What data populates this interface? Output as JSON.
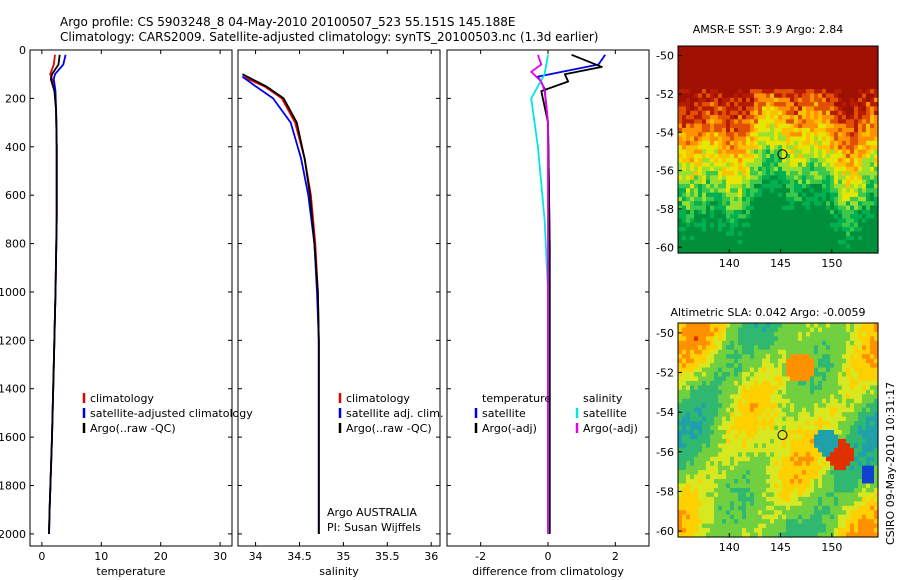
{
  "header": {
    "line1": "Argo profile: CS 5903248_8 04-May-2010 20100507_523 55.151S 145.188E",
    "line2": "Climatology: CARS2009. Satellite-adjusted climatology: synTS_20100503.nc (1.3d earlier)"
  },
  "side_label": "CSIRO 09-May-2010 10:31:17",
  "chart_data": [
    {
      "type": "line",
      "xlabel": "temperature",
      "ylabel": "",
      "xlim": [
        -2,
        32
      ],
      "ylim": [
        2050,
        0
      ],
      "xticks": [
        0,
        10,
        20,
        30
      ],
      "yticks": [
        0,
        200,
        400,
        600,
        800,
        1000,
        1200,
        1400,
        1600,
        1800,
        2000
      ],
      "legend": [
        "climatology",
        "satellite-adjusted climatology",
        "Argo(..raw -QC)"
      ],
      "series": [
        {
          "name": "climatology",
          "color": "#e60000",
          "points": [
            [
              2.2,
              20
            ],
            [
              2.0,
              60
            ],
            [
              1.4,
              100
            ],
            [
              1.7,
              120
            ],
            [
              2.2,
              170
            ],
            [
              2.4,
              250
            ],
            [
              2.5,
              400
            ],
            [
              2.5,
              700
            ],
            [
              2.3,
              1000
            ],
            [
              2.0,
              1300
            ],
            [
              1.7,
              1600
            ],
            [
              1.3,
              1900
            ],
            [
              1.2,
              2000
            ]
          ]
        },
        {
          "name": "satellite-adjusted climatology",
          "color": "#0000ee",
          "points": [
            [
              4.0,
              20
            ],
            [
              3.6,
              60
            ],
            [
              2.2,
              100
            ],
            [
              2.0,
              120
            ],
            [
              2.3,
              170
            ],
            [
              2.4,
              250
            ],
            [
              2.5,
              400
            ],
            [
              2.5,
              700
            ],
            [
              2.3,
              1000
            ],
            [
              2.0,
              1300
            ],
            [
              1.7,
              1600
            ],
            [
              1.3,
              1900
            ],
            [
              1.2,
              2000
            ]
          ]
        },
        {
          "name": "Argo(..raw -QC)",
          "color": "#000000",
          "points": [
            [
              3.0,
              20
            ],
            [
              2.8,
              60
            ],
            [
              1.7,
              100
            ],
            [
              1.5,
              120
            ],
            [
              2.1,
              170
            ],
            [
              2.4,
              250
            ],
            [
              2.5,
              400
            ],
            [
              2.5,
              700
            ],
            [
              2.3,
              1000
            ],
            [
              2.0,
              1300
            ],
            [
              1.7,
              1600
            ],
            [
              1.3,
              1900
            ],
            [
              1.2,
              2000
            ]
          ]
        }
      ]
    },
    {
      "type": "line",
      "xlabel": "salinity",
      "ylabel": "",
      "xlim": [
        33.8,
        36.1
      ],
      "ylim": [
        2050,
        0
      ],
      "xticks": [
        34,
        34.5,
        35,
        35.5,
        36
      ],
      "legend": [
        "climatology",
        "satellite adj. clim.",
        "Argo(..raw -QC)"
      ],
      "annotation": [
        "Argo AUSTRALIA",
        "PI: Susan Wijffels"
      ],
      "series": [
        {
          "name": "climatology",
          "color": "#e60000",
          "points": [
            [
              33.85,
              110
            ],
            [
              34.1,
              150
            ],
            [
              34.3,
              200
            ],
            [
              34.45,
              300
            ],
            [
              34.56,
              450
            ],
            [
              34.63,
              600
            ],
            [
              34.68,
              800
            ],
            [
              34.71,
              1000
            ],
            [
              34.72,
              1200
            ],
            [
              34.72,
              1600
            ],
            [
              34.72,
              2000
            ]
          ]
        },
        {
          "name": "satellite adj. clim.",
          "color": "#0000ee",
          "points": [
            [
              33.85,
              110
            ],
            [
              34.0,
              150
            ],
            [
              34.2,
              200
            ],
            [
              34.4,
              300
            ],
            [
              34.52,
              450
            ],
            [
              34.6,
              600
            ],
            [
              34.67,
              800
            ],
            [
              34.7,
              1000
            ],
            [
              34.72,
              1200
            ],
            [
              34.72,
              1600
            ],
            [
              34.72,
              2000
            ]
          ]
        },
        {
          "name": "Argo(..raw -QC)",
          "color": "#000000",
          "points": [
            [
              33.85,
              100
            ],
            [
              34.12,
              150
            ],
            [
              34.32,
              200
            ],
            [
              34.47,
              300
            ],
            [
              34.56,
              450
            ],
            [
              34.62,
              600
            ],
            [
              34.67,
              800
            ],
            [
              34.71,
              1000
            ],
            [
              34.72,
              1200
            ],
            [
              34.72,
              1600
            ],
            [
              34.72,
              2000
            ]
          ]
        }
      ]
    },
    {
      "type": "line",
      "xlabel": "difference from climatology",
      "ylabel": "",
      "xlim": [
        -3.0,
        3.0
      ],
      "ylim": [
        2050,
        0
      ],
      "xticks": [
        -2,
        0,
        2
      ],
      "legend_temperature": [
        "temperature",
        "satellite",
        "Argo(-adj)"
      ],
      "legend_salinity": [
        "salinity",
        "satellite",
        "Argo(-adj)"
      ],
      "series": [
        {
          "name": "temperature satellite",
          "color": "#0000ee",
          "points": [
            [
              1.7,
              20
            ],
            [
              1.5,
              60
            ],
            [
              -0.3,
              110
            ],
            [
              -0.1,
              160
            ],
            [
              0.0,
              300
            ],
            [
              0.05,
              800
            ],
            [
              0.05,
              1400
            ],
            [
              0.05,
              2000
            ]
          ]
        },
        {
          "name": "temperature Argo(-adj)",
          "color": "#000000",
          "points": [
            [
              0.7,
              20
            ],
            [
              1.6,
              70
            ],
            [
              0.5,
              100
            ],
            [
              0.6,
              130
            ],
            [
              -0.2,
              170
            ],
            [
              0.0,
              300
            ],
            [
              0.05,
              800
            ],
            [
              0.05,
              1400
            ],
            [
              0.05,
              2000
            ]
          ]
        },
        {
          "name": "salinity satellite",
          "color": "#00e6e6",
          "points": [
            [
              0.0,
              20
            ],
            [
              -0.1,
              100
            ],
            [
              -0.5,
              200
            ],
            [
              -0.3,
              400
            ],
            [
              -0.1,
              700
            ],
            [
              0.0,
              1000
            ],
            [
              0.0,
              1400
            ],
            [
              0.0,
              2000
            ]
          ]
        },
        {
          "name": "salinity Argo(-adj)",
          "color": "#e600e6",
          "points": [
            [
              -0.3,
              20
            ],
            [
              -0.2,
              60
            ],
            [
              -0.5,
              90
            ],
            [
              -0.2,
              130
            ],
            [
              -0.1,
              170
            ],
            [
              0.0,
              300
            ],
            [
              0.0,
              800
            ],
            [
              0.0,
              2000
            ]
          ]
        }
      ]
    },
    {
      "type": "heatmap",
      "title": "AMSR-E SST: 3.9  Argo: 2.84",
      "xlim": [
        135,
        154.5
      ],
      "ylim": [
        -60.3,
        -49.5
      ],
      "xticks": [
        140,
        145,
        150
      ],
      "yticks": [
        -50,
        -52,
        -54,
        -56,
        -58,
        -60
      ],
      "marker": [
        145.188,
        -55.151
      ]
    },
    {
      "type": "heatmap",
      "title": "Altimetric SLA: 0.042  Argo: -0.0059",
      "xlim": [
        135,
        154.5
      ],
      "ylim": [
        -60.3,
        -49.5
      ],
      "xticks": [
        140,
        145,
        150
      ],
      "yticks": [
        -50,
        -52,
        -54,
        -56,
        -58,
        -60
      ],
      "marker": [
        145.188,
        -55.151
      ]
    }
  ]
}
